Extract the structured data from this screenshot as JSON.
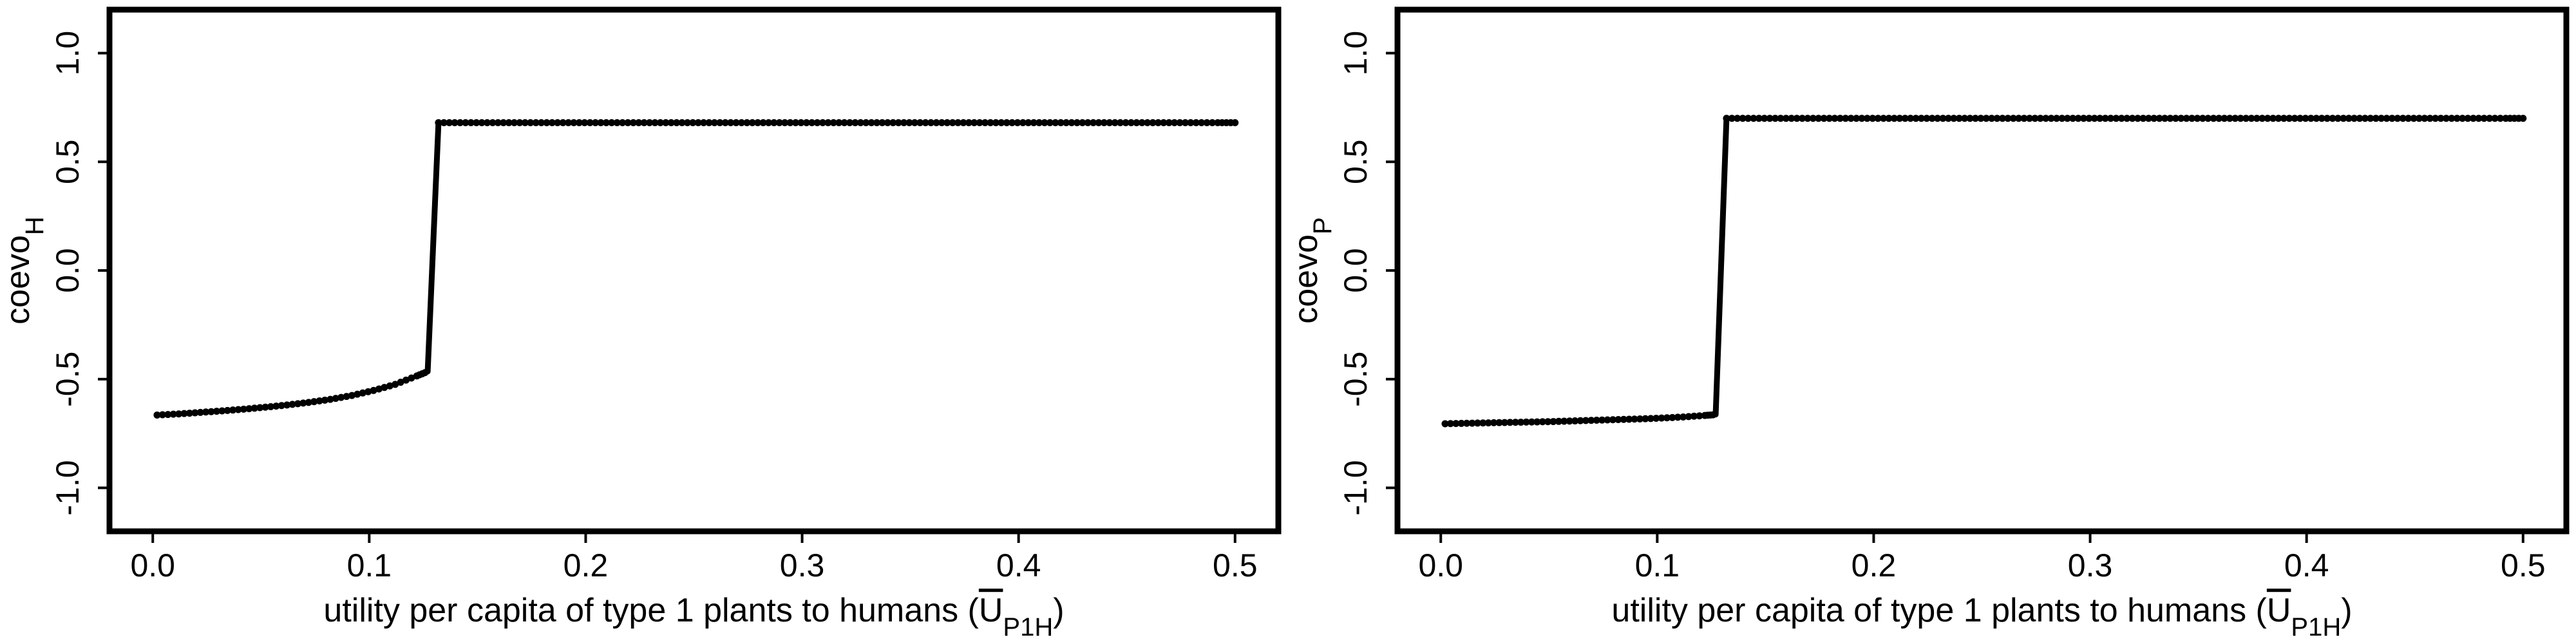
{
  "chart_data": [
    {
      "type": "scatter",
      "title": "",
      "xlabel": {
        "text": "utility per capita of type 1 plants to humans (",
        "symbol": "U",
        "subscript": "P1H",
        "close": ")"
      },
      "ylabel": {
        "text": "coevo",
        "subscript": "H"
      },
      "xlim": [
        -0.02,
        0.52
      ],
      "ylim": [
        -1.2,
        1.2
      ],
      "xticks": [
        0.0,
        0.1,
        0.2,
        0.3,
        0.4,
        0.5
      ],
      "xtick_labels": [
        "0.0",
        "0.1",
        "0.2",
        "0.3",
        "0.4",
        "0.5"
      ],
      "yticks": [
        -1.0,
        -0.5,
        0.0,
        0.5,
        1.0
      ],
      "ytick_labels": [
        "-1.0",
        "-0.5",
        "0.0",
        "0.5",
        "1.0"
      ],
      "grid": false,
      "legend": "none",
      "line_color": "#000000",
      "series": [
        {
          "x": [
            0.002,
            0.012,
            0.022,
            0.032,
            0.042,
            0.052,
            0.062,
            0.072,
            0.082,
            0.092,
            0.102,
            0.112,
            0.122,
            0.127,
            0.132,
            0.142,
            0.152,
            0.162,
            0.172,
            0.182,
            0.192,
            0.202,
            0.212,
            0.222,
            0.232,
            0.242,
            0.252,
            0.262,
            0.272,
            0.282,
            0.292,
            0.302,
            0.312,
            0.322,
            0.332,
            0.342,
            0.352,
            0.362,
            0.372,
            0.382,
            0.392,
            0.402,
            0.412,
            0.422,
            0.432,
            0.442,
            0.452,
            0.462,
            0.472,
            0.482,
            0.492,
            0.5
          ],
          "y": [
            -0.665,
            -0.66,
            -0.653,
            -0.646,
            -0.638,
            -0.629,
            -0.619,
            -0.607,
            -0.593,
            -0.575,
            -0.552,
            -0.524,
            -0.485,
            -0.465,
            0.68,
            0.68,
            0.68,
            0.68,
            0.68,
            0.68,
            0.68,
            0.68,
            0.68,
            0.68,
            0.68,
            0.68,
            0.68,
            0.68,
            0.68,
            0.68,
            0.68,
            0.68,
            0.68,
            0.68,
            0.68,
            0.68,
            0.68,
            0.68,
            0.68,
            0.68,
            0.68,
            0.68,
            0.68,
            0.68,
            0.68,
            0.68,
            0.68,
            0.68,
            0.68,
            0.68,
            0.68,
            0.68
          ]
        }
      ]
    },
    {
      "type": "scatter",
      "title": "",
      "xlabel": {
        "text": "utility per capita of type 1 plants to humans (",
        "symbol": "U",
        "subscript": "P1H",
        "close": ")"
      },
      "ylabel": {
        "text": "coevo",
        "subscript": "P"
      },
      "xlim": [
        -0.02,
        0.52
      ],
      "ylim": [
        -1.2,
        1.2
      ],
      "xticks": [
        0.0,
        0.1,
        0.2,
        0.3,
        0.4,
        0.5
      ],
      "xtick_labels": [
        "0.0",
        "0.1",
        "0.2",
        "0.3",
        "0.4",
        "0.5"
      ],
      "yticks": [
        -1.0,
        -0.5,
        0.0,
        0.5,
        1.0
      ],
      "ytick_labels": [
        "-1.0",
        "-0.5",
        "0.0",
        "0.5",
        "1.0"
      ],
      "grid": false,
      "legend": "none",
      "line_color": "#000000",
      "series": [
        {
          "x": [
            0.002,
            0.012,
            0.022,
            0.032,
            0.042,
            0.052,
            0.062,
            0.072,
            0.082,
            0.092,
            0.102,
            0.112,
            0.122,
            0.127,
            0.132,
            0.142,
            0.152,
            0.162,
            0.172,
            0.182,
            0.192,
            0.202,
            0.212,
            0.222,
            0.232,
            0.242,
            0.252,
            0.262,
            0.272,
            0.282,
            0.292,
            0.302,
            0.312,
            0.322,
            0.332,
            0.342,
            0.352,
            0.362,
            0.372,
            0.382,
            0.392,
            0.402,
            0.412,
            0.422,
            0.432,
            0.442,
            0.452,
            0.462,
            0.472,
            0.482,
            0.492,
            0.5
          ],
          "y": [
            -0.705,
            -0.703,
            -0.701,
            -0.699,
            -0.697,
            -0.695,
            -0.692,
            -0.689,
            -0.686,
            -0.683,
            -0.679,
            -0.674,
            -0.667,
            -0.663,
            0.7,
            0.7,
            0.7,
            0.7,
            0.7,
            0.7,
            0.7,
            0.7,
            0.7,
            0.7,
            0.7,
            0.7,
            0.7,
            0.7,
            0.7,
            0.7,
            0.7,
            0.7,
            0.7,
            0.7,
            0.7,
            0.7,
            0.7,
            0.7,
            0.7,
            0.7,
            0.7,
            0.7,
            0.7,
            0.7,
            0.7,
            0.7,
            0.7,
            0.7,
            0.7,
            0.7,
            0.7,
            0.7
          ]
        }
      ]
    }
  ]
}
